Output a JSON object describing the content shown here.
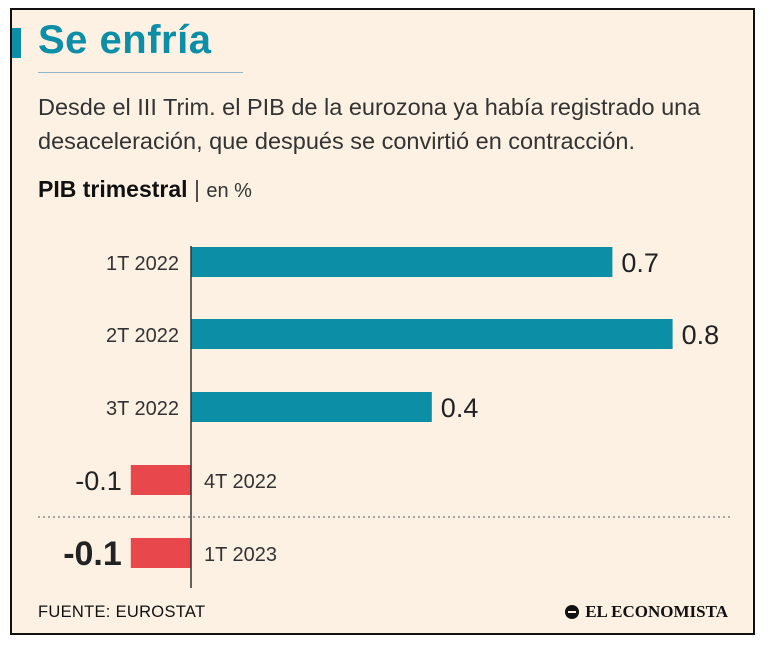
{
  "header": {
    "title": "Se enfría",
    "subtitle": "Desde el III Trim. el PIB de la eurozona ya había registrado una desaceleración, que después se convirtió en contracción."
  },
  "chart_title": {
    "main": "PIB trimestral",
    "separator": "|",
    "unit": "en %"
  },
  "footer": {
    "source": "FUENTE: EUROSTAT",
    "logo": "EL ECONOMISTA"
  },
  "colors": {
    "positive": "#0b8ea6",
    "negative": "#e8474c",
    "accent": "#0b8ea6",
    "title": "#0b8ea6",
    "background": "#fdf1e3"
  },
  "chart_data": {
    "type": "bar",
    "orientation": "horizontal",
    "title": "PIB trimestral",
    "unit": "en %",
    "categories": [
      "1T 2022",
      "2T 2022",
      "3T 2022",
      "4T 2022",
      "1T 2023"
    ],
    "values": [
      0.7,
      0.8,
      0.4,
      -0.1,
      -0.1
    ],
    "value_labels": [
      "0.7",
      "0.8",
      "0.4",
      "-0.1",
      "-0.1"
    ],
    "highlight_last": true,
    "xlim": [
      -0.13,
      0.8
    ]
  }
}
